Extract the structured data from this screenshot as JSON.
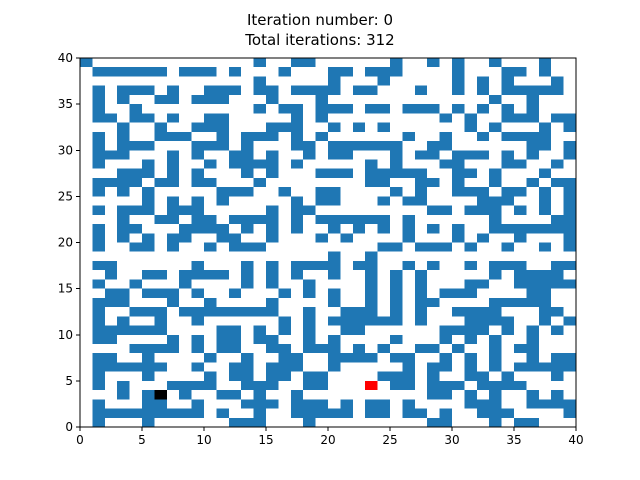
{
  "chart_data": {
    "type": "heatmap",
    "title_line1": "Iteration number: 0",
    "title_line2": "Total iterations: 312",
    "xlabel": "",
    "ylabel": "",
    "xlim": [
      0,
      40
    ],
    "ylim": [
      0,
      40
    ],
    "x_ticks": [
      0,
      5,
      10,
      15,
      20,
      25,
      30,
      35,
      40
    ],
    "y_ticks": [
      0,
      5,
      10,
      15,
      20,
      25,
      30,
      35,
      40
    ],
    "grid": false,
    "colors": {
      "wall": "#1f77b4",
      "open": "#ffffff",
      "start": "#000000",
      "goal": "#ff0000"
    },
    "start_cell": {
      "col": 6,
      "row": 3
    },
    "goal_cell": {
      "col": 23,
      "row": 4
    },
    "wall_rows_top_to_bottom": [
      "1000000000000010011000000100101001000100",
      "0111111011101000100011011100001000110100",
      "0000000000000010000010001000001010100010",
      "0101110100111011011110110001001010111110",
      "0101001101110001000100000000000001001000",
      "0100100000000010110111011011101010101000",
      "0110110100110000010100000000010100111011",
      "0001001001110001110010101000000101000101",
      "0101001110010111010100000010010010111100",
      "0101110001110100011011111100110000001101",
      "0111000101001101001011000101101110101001",
      "0100010100101111010000010100011000110010",
      "0001110101000101000111011111001101000100",
      "0111101101100010000000011001101001001011",
      "0101010000011100100110000101001110110101",
      "0000010101010000010110001011000011100101",
      "0101110111000001011000000000110111010101",
      "0001001101101111010111111010000001000011",
      "0101100011110101010010101010101001111111",
      "0101010110011001000101000010001010010001",
      "0100110100101110000000001101110100100101",
      "0000000000000000000010010000000000000000",
      "0110000001000101011110110010100101110011",
      "0010011011110101010010010101000001011110",
      "0100100010000101001000010101000110011111",
      "0011011101001000101010010101011100001100",
      "0111000100100001000010010101100001111100",
      "0100111011111111001001110101001111000110",
      "0101001001000000101011111101000111100101",
      "0111111000011010101001100000011110101010",
      "0110000101011011001010000100010101001000",
      "0000111101011001101110101001101001011000",
      "0110010000100100110011110110010101001011",
      "0111111001001101110010000010110101011111",
      "0100010000101101101100001110100110100010",
      "0101000111100111001100010110111011110000",
      "0001011010011010010000000000110101001010",
      "0100011001000111011101011010000111001111",
      "0111111111010010011111011011010011100001",
      "0100010000001110001000000000110001011000"
    ]
  }
}
